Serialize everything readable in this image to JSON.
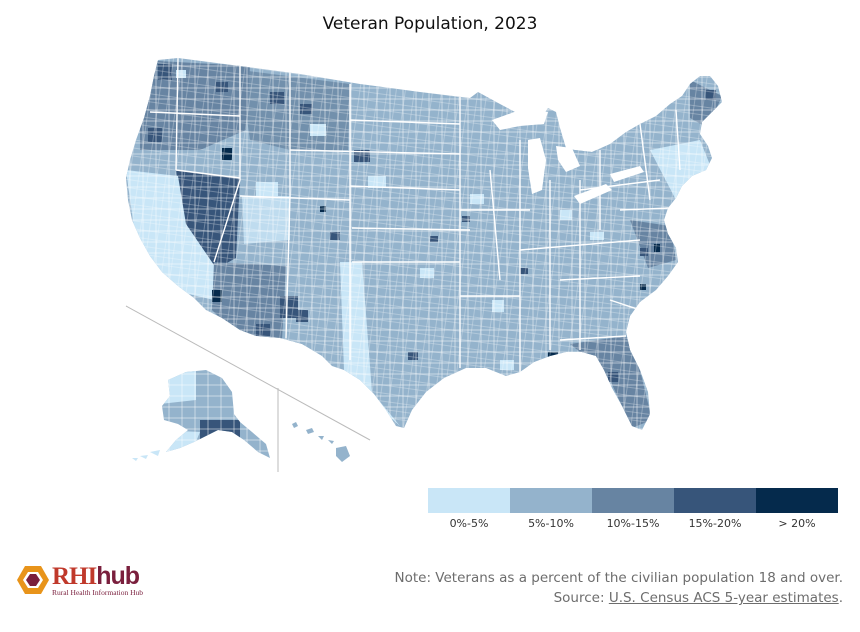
{
  "title": "Veteran Population, 2023",
  "legend": {
    "items": [
      {
        "label": "0%-5%",
        "color": "#c9e6f7"
      },
      {
        "label": "5%-10%",
        "color": "#94b3cc"
      },
      {
        "label": "10%-15%",
        "color": "#6784a2"
      },
      {
        "label": "15%-20%",
        "color": "#37557a"
      },
      {
        "label": "> 20%",
        "color": "#052a4c"
      }
    ]
  },
  "logo": {
    "word_main": "RHI",
    "word_hub": "hub",
    "subtitle": "Rural Health Information Hub"
  },
  "note": {
    "text": "Note: Veterans as a percent of the civilian population 18 and over.",
    "source_prefix": "Source: ",
    "source_link": "U.S. Census ACS 5-year estimates",
    "source_suffix": "."
  }
}
